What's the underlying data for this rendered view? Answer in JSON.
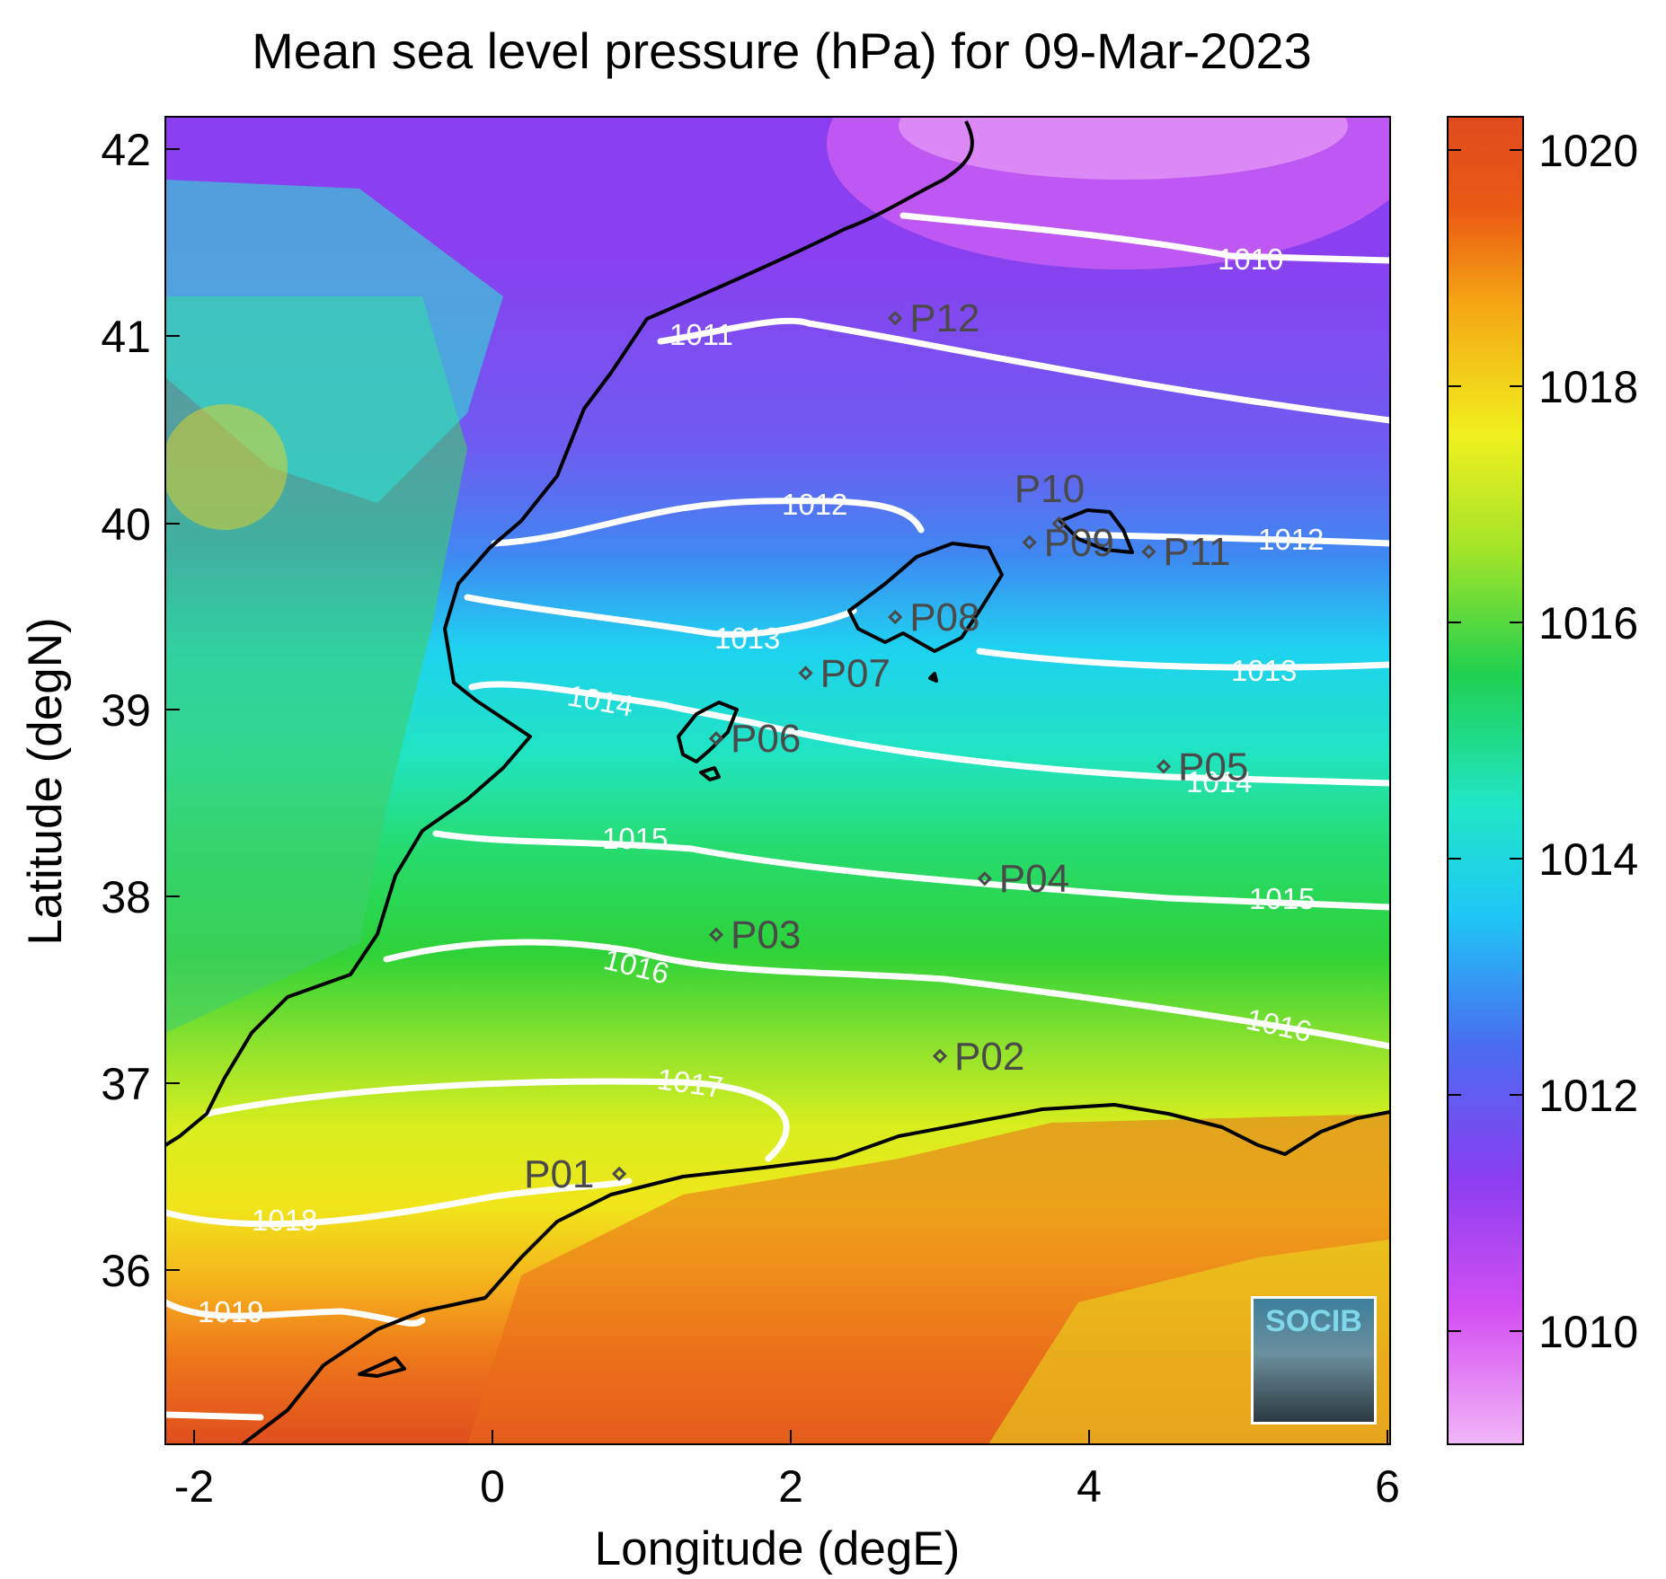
{
  "title": "Mean sea level pressure (hPa) for 09-Mar-2023",
  "axes": {
    "xlabel": "Longitude (degE)",
    "ylabel": "Latitude (degN)",
    "xticks": [
      "-2",
      "0",
      "2",
      "4",
      "6"
    ],
    "yticks": [
      "42",
      "41",
      "40",
      "39",
      "38",
      "37",
      "36"
    ],
    "xlim": [
      -2.2,
      6.1
    ],
    "ylim": [
      35.15,
      42.2
    ]
  },
  "colorbar": {
    "ticks": [
      "1020",
      "1018",
      "1016",
      "1014",
      "1012",
      "1010"
    ],
    "range": [
      1009,
      1020.2
    ],
    "colormap": [
      "#f2b6f7",
      "#d450f2",
      "#8b3ef0",
      "#4a6cf0",
      "#1ec8f5",
      "#20e6c8",
      "#20d050",
      "#9ee32a",
      "#f0f01e",
      "#f5a514",
      "#ea5a14",
      "#e04a1e"
    ]
  },
  "isobars": [
    {
      "value": "1010",
      "label": "1010"
    },
    {
      "value": "1011",
      "label": "1011"
    },
    {
      "value": "1012",
      "label": "1012"
    },
    {
      "value": "1013",
      "label": "1013"
    },
    {
      "value": "1014",
      "label": "1014"
    },
    {
      "value": "1015",
      "label": "1015"
    },
    {
      "value": "1016",
      "label": "1016"
    },
    {
      "value": "1017",
      "label": "1017"
    },
    {
      "value": "1018",
      "label": "1018"
    },
    {
      "value": "1019",
      "label": "1019"
    }
  ],
  "points": [
    {
      "name": "P01",
      "lon": 0.85,
      "lat": 36.52
    },
    {
      "name": "P02",
      "lon": 3.0,
      "lat": 37.15
    },
    {
      "name": "P03",
      "lon": 1.5,
      "lat": 37.8
    },
    {
      "name": "P04",
      "lon": 3.3,
      "lat": 38.1
    },
    {
      "name": "P05",
      "lon": 4.5,
      "lat": 38.7
    },
    {
      "name": "P06",
      "lon": 1.5,
      "lat": 38.85
    },
    {
      "name": "P07",
      "lon": 2.1,
      "lat": 39.2
    },
    {
      "name": "P08",
      "lon": 2.7,
      "lat": 39.5
    },
    {
      "name": "P09",
      "lon": 3.6,
      "lat": 39.9
    },
    {
      "name": "P10",
      "lon": 3.8,
      "lat": 40.0
    },
    {
      "name": "P11",
      "lon": 4.4,
      "lat": 39.85
    },
    {
      "name": "P12",
      "lon": 2.7,
      "lat": 41.1
    }
  ],
  "logo": "SOCIB"
}
